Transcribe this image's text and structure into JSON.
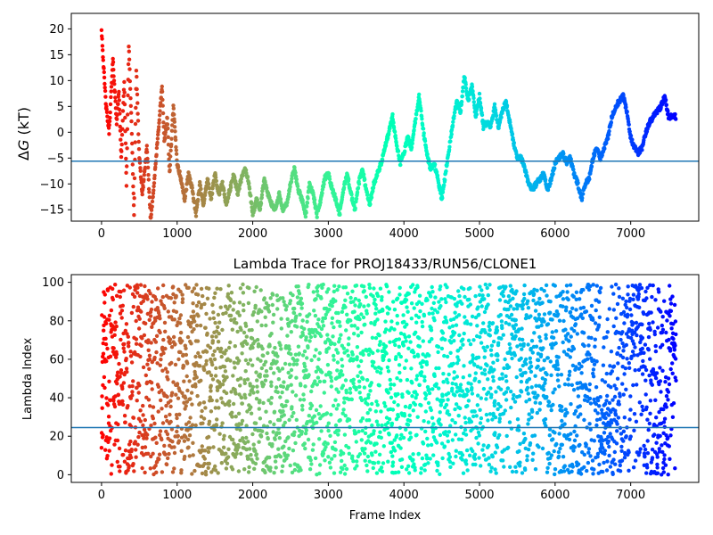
{
  "chart_data": [
    {
      "type": "scatter",
      "title": "",
      "xlabel": "",
      "ylabel_prefix": "Δ",
      "ylabel_var": "G",
      "ylabel_suffix": " (kT)",
      "xlim": [
        -400,
        7900
      ],
      "ylim": [
        -17.2,
        23.0
      ],
      "xticks": [
        0,
        1000,
        2000,
        3000,
        4000,
        5000,
        6000,
        7000
      ],
      "yticks": [
        -15,
        -10,
        -5,
        0,
        5,
        10,
        15,
        20
      ],
      "hline": {
        "y": -5.6,
        "color": "#1f77b4"
      },
      "colormap": "rainbow",
      "x_range": [
        0,
        7600
      ],
      "path": [
        [
          0,
          20
        ],
        [
          30,
          12
        ],
        [
          60,
          5
        ],
        [
          100,
          0
        ],
        [
          150,
          14
        ],
        [
          200,
          2
        ],
        [
          230,
          8
        ],
        [
          260,
          -5
        ],
        [
          300,
          10
        ],
        [
          330,
          -10
        ],
        [
          360,
          17
        ],
        [
          400,
          0
        ],
        [
          430,
          -16
        ],
        [
          460,
          12
        ],
        [
          500,
          -5
        ],
        [
          540,
          -12
        ],
        [
          600,
          -3
        ],
        [
          650,
          -17
        ],
        [
          700,
          -9
        ],
        [
          750,
          0
        ],
        [
          800,
          9
        ],
        [
          830,
          -2
        ],
        [
          870,
          3
        ],
        [
          900,
          -8
        ],
        [
          950,
          5
        ],
        [
          1000,
          -6
        ],
        [
          1050,
          -9
        ],
        [
          1100,
          -13
        ],
        [
          1150,
          -8
        ],
        [
          1200,
          -11
        ],
        [
          1250,
          -16
        ],
        [
          1300,
          -10
        ],
        [
          1350,
          -14
        ],
        [
          1400,
          -9
        ],
        [
          1450,
          -13
        ],
        [
          1500,
          -8
        ],
        [
          1550,
          -12
        ],
        [
          1600,
          -10
        ],
        [
          1650,
          -14
        ],
        [
          1700,
          -11
        ],
        [
          1750,
          -8
        ],
        [
          1800,
          -12
        ],
        [
          1850,
          -9
        ],
        [
          1900,
          -7
        ],
        [
          1950,
          -10
        ],
        [
          2000,
          -16
        ],
        [
          2050,
          -13
        ],
        [
          2100,
          -15
        ],
        [
          2150,
          -9
        ],
        [
          2200,
          -12
        ],
        [
          2250,
          -14
        ],
        [
          2300,
          -15
        ],
        [
          2350,
          -12
        ],
        [
          2400,
          -15
        ],
        [
          2450,
          -14
        ],
        [
          2500,
          -10
        ],
        [
          2550,
          -7
        ],
        [
          2600,
          -11
        ],
        [
          2650,
          -13
        ],
        [
          2700,
          -16
        ],
        [
          2750,
          -10
        ],
        [
          2800,
          -12
        ],
        [
          2850,
          -16
        ],
        [
          2900,
          -13
        ],
        [
          2950,
          -9
        ],
        [
          3000,
          -8
        ],
        [
          3050,
          -11
        ],
        [
          3100,
          -13
        ],
        [
          3150,
          -16
        ],
        [
          3200,
          -11
        ],
        [
          3250,
          -8
        ],
        [
          3300,
          -12
        ],
        [
          3350,
          -15
        ],
        [
          3400,
          -10
        ],
        [
          3450,
          -7
        ],
        [
          3500,
          -11
        ],
        [
          3550,
          -14
        ],
        [
          3600,
          -10
        ],
        [
          3650,
          -8
        ],
        [
          3700,
          -6
        ],
        [
          3750,
          -3
        ],
        [
          3800,
          0
        ],
        [
          3850,
          3
        ],
        [
          3900,
          -2
        ],
        [
          3950,
          -6
        ],
        [
          4000,
          -4
        ],
        [
          4050,
          -1
        ],
        [
          4100,
          -3
        ],
        [
          4150,
          2
        ],
        [
          4200,
          7
        ],
        [
          4250,
          1
        ],
        [
          4300,
          -4
        ],
        [
          4350,
          -7
        ],
        [
          4400,
          -6
        ],
        [
          4450,
          -9
        ],
        [
          4500,
          -13
        ],
        [
          4550,
          -8
        ],
        [
          4600,
          -3
        ],
        [
          4650,
          2
        ],
        [
          4700,
          6
        ],
        [
          4750,
          4
        ],
        [
          4800,
          11
        ],
        [
          4850,
          6
        ],
        [
          4900,
          9
        ],
        [
          4950,
          3
        ],
        [
          5000,
          7
        ],
        [
          5050,
          1
        ],
        [
          5100,
          2
        ],
        [
          5150,
          1
        ],
        [
          5200,
          5
        ],
        [
          5250,
          1
        ],
        [
          5300,
          4
        ],
        [
          5350,
          6
        ],
        [
          5400,
          2
        ],
        [
          5450,
          -2
        ],
        [
          5500,
          -5
        ],
        [
          5550,
          -5
        ],
        [
          5600,
          -7
        ],
        [
          5650,
          -10
        ],
        [
          5700,
          -11
        ],
        [
          5750,
          -10
        ],
        [
          5800,
          -9
        ],
        [
          5850,
          -8
        ],
        [
          5900,
          -11
        ],
        [
          5950,
          -9
        ],
        [
          6000,
          -6
        ],
        [
          6050,
          -5
        ],
        [
          6100,
          -4
        ],
        [
          6150,
          -6
        ],
        [
          6200,
          -5
        ],
        [
          6250,
          -8
        ],
        [
          6300,
          -10
        ],
        [
          6350,
          -13
        ],
        [
          6400,
          -10
        ],
        [
          6450,
          -9
        ],
        [
          6500,
          -5
        ],
        [
          6550,
          -3
        ],
        [
          6600,
          -5
        ],
        [
          6650,
          -3
        ],
        [
          6700,
          -1
        ],
        [
          6750,
          3
        ],
        [
          6800,
          5
        ],
        [
          6850,
          6
        ],
        [
          6900,
          7
        ],
        [
          6950,
          4
        ],
        [
          7000,
          -1
        ],
        [
          7050,
          -3
        ],
        [
          7100,
          -4
        ],
        [
          7150,
          -3
        ],
        [
          7200,
          0
        ],
        [
          7250,
          2
        ],
        [
          7300,
          3
        ],
        [
          7350,
          4
        ],
        [
          7400,
          5
        ],
        [
          7450,
          7
        ],
        [
          7500,
          3
        ],
        [
          7600,
          3
        ]
      ]
    },
    {
      "type": "scatter",
      "title": "Lambda Trace for PROJ18433/RUN56/CLONE1",
      "xlabel": "Frame Index",
      "ylabel": "Lambda Index",
      "xlim": [
        -400,
        7900
      ],
      "ylim": [
        -4,
        104
      ],
      "xticks": [
        0,
        1000,
        2000,
        3000,
        4000,
        5000,
        6000,
        7000
      ],
      "yticks": [
        0,
        20,
        40,
        60,
        80,
        100
      ],
      "hline": {
        "y": 24.5,
        "color": "#1f77b4"
      },
      "colormap": "rainbow",
      "x_range": [
        0,
        7600
      ],
      "value_range": [
        0,
        99
      ],
      "dense_bands": [
        {
          "x_range": [
            5380,
            5500
          ],
          "y_range": [
            60,
            99
          ]
        },
        {
          "x_range": [
            5700,
            5850
          ],
          "y_range": [
            40,
            99
          ]
        },
        {
          "x_range": [
            6950,
            7150
          ],
          "y_range": [
            60,
            99
          ]
        },
        {
          "x_range": [
            6600,
            6800
          ],
          "y_range": [
            0,
            40
          ]
        },
        {
          "x_range": [
            7300,
            7450
          ],
          "y_range": [
            0,
            55
          ]
        },
        {
          "x_range": [
            7500,
            7600
          ],
          "y_range": [
            60,
            95
          ]
        }
      ]
    }
  ]
}
